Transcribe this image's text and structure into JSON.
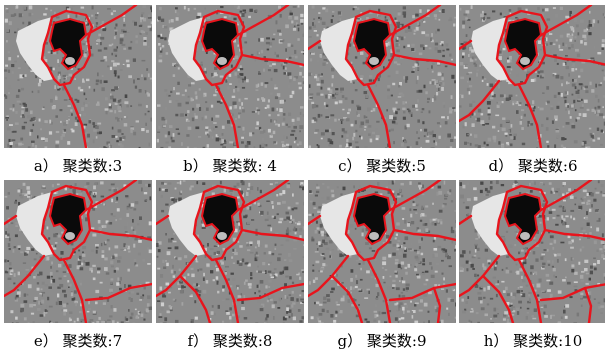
{
  "panels": [
    {
      "label": "a）",
      "caption": "聚类数:3",
      "clusters": 3
    },
    {
      "label": "b）",
      "caption": "聚类数: 4",
      "clusters": 4
    },
    {
      "label": "c）",
      "caption": "聚类数:5",
      "clusters": 5
    },
    {
      "label": "d）",
      "caption": "聚类数:6",
      "clusters": 6
    },
    {
      "label": "e）",
      "caption": "聚类数:7",
      "clusters": 7
    },
    {
      "label": "f）",
      "caption": "聚类数:8",
      "clusters": 8
    },
    {
      "label": "g）",
      "caption": "聚类数:9",
      "clusters": 9
    },
    {
      "label": "h）",
      "caption": "聚类数:10",
      "clusters": 10
    }
  ],
  "colors": {
    "boundary": "#e8141c",
    "background": "#8c8c8c",
    "dark_region": "#0a0a0a",
    "bright_region": "#e6e6e6"
  }
}
